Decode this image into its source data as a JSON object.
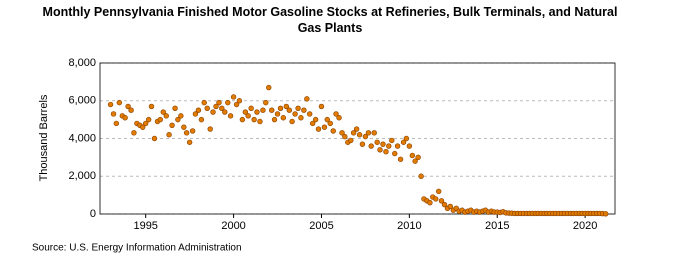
{
  "chart_data": {
    "type": "scatter",
    "title": "Monthly Pennsylvania Finished Motor Gasoline Stocks at Refineries, Bulk Terminals, and Natural Gas Plants",
    "y_label": "Thousand Barrels",
    "source": "Source: U.S. Energy Information Administration",
    "xlim": [
      1992.4,
      2021.7
    ],
    "xticks": [
      1995,
      2000,
      2005,
      2010,
      2015,
      2020
    ],
    "ylim": [
      0,
      8000
    ],
    "yticks": [
      {
        "value": 0,
        "label": "0"
      },
      {
        "value": 2000,
        "label": "2,000"
      },
      {
        "value": 4000,
        "label": "4,000"
      },
      {
        "value": 6000,
        "label": "6,000"
      },
      {
        "value": 8000,
        "label": "8,000"
      }
    ],
    "grid": true,
    "color": "#e07b00",
    "edge_color": "#8b4000",
    "x": [
      1993,
      1993.17,
      1993.33,
      1993.5,
      1993.67,
      1993.83,
      1994,
      1994.17,
      1994.33,
      1994.5,
      1994.67,
      1994.83,
      1995,
      1995.17,
      1995.33,
      1995.5,
      1995.67,
      1995.83,
      1996,
      1996.17,
      1996.33,
      1996.5,
      1996.67,
      1996.83,
      1997,
      1997.17,
      1997.33,
      1997.5,
      1997.67,
      1997.83,
      1998,
      1998.17,
      1998.33,
      1998.5,
      1998.67,
      1998.83,
      1999,
      1999.17,
      1999.33,
      1999.5,
      1999.67,
      1999.83,
      2000,
      2000.17,
      2000.33,
      2000.5,
      2000.67,
      2000.83,
      2001,
      2001.17,
      2001.33,
      2001.5,
      2001.67,
      2001.83,
      2002,
      2002.17,
      2002.33,
      2002.5,
      2002.67,
      2002.83,
      2003,
      2003.17,
      2003.33,
      2003.5,
      2003.67,
      2003.83,
      2004,
      2004.17,
      2004.33,
      2004.5,
      2004.67,
      2004.83,
      2005,
      2005.17,
      2005.33,
      2005.5,
      2005.67,
      2005.83,
      2006,
      2006.17,
      2006.33,
      2006.5,
      2006.67,
      2006.83,
      2007,
      2007.17,
      2007.33,
      2007.5,
      2007.67,
      2007.83,
      2008,
      2008.17,
      2008.33,
      2008.5,
      2008.67,
      2008.83,
      2009,
      2009.17,
      2009.33,
      2009.5,
      2009.67,
      2009.83,
      2010,
      2010.17,
      2010.33,
      2010.5,
      2010.67,
      2010.83,
      2011,
      2011.17,
      2011.33,
      2011.5,
      2011.67,
      2011.83,
      2012,
      2012.17,
      2012.33,
      2012.5,
      2012.67,
      2012.83,
      2013,
      2013.17,
      2013.33,
      2013.5,
      2013.67,
      2013.83,
      2014,
      2014.17,
      2014.33,
      2014.5,
      2014.67,
      2014.83,
      2015,
      2015.17,
      2015.33,
      2015.5,
      2015.67,
      2015.83,
      2016,
      2016.17,
      2016.33,
      2016.5,
      2016.67,
      2016.83,
      2017,
      2017.17,
      2017.33,
      2017.5,
      2017.67,
      2017.83,
      2018,
      2018.17,
      2018.33,
      2018.5,
      2018.67,
      2018.83,
      2019,
      2019.17,
      2019.33,
      2019.5,
      2019.67,
      2019.83,
      2020,
      2020.17,
      2020.33,
      2020.5,
      2020.67,
      2020.83,
      2021,
      2021.17
    ],
    "values": [
      5800,
      5300,
      4800,
      5900,
      5200,
      5100,
      5700,
      5500,
      4300,
      4800,
      4700,
      4600,
      4800,
      5000,
      5700,
      4000,
      4900,
      5000,
      5400,
      5200,
      4200,
      4700,
      5600,
      5000,
      5200,
      4600,
      4300,
      3800,
      4400,
      5300,
      5500,
      5000,
      5900,
      5600,
      4500,
      5400,
      5700,
      5900,
      5600,
      5400,
      5900,
      5200,
      6200,
      5800,
      6000,
      5000,
      5400,
      5200,
      5600,
      5000,
      5400,
      4900,
      5500,
      5900,
      6700,
      5500,
      5000,
      5300,
      5600,
      5100,
      5700,
      5500,
      4900,
      5300,
      5600,
      5100,
      5500,
      6100,
      5300,
      4800,
      5000,
      4500,
      5700,
      4600,
      5000,
      4800,
      4400,
      5300,
      5100,
      4300,
      4100,
      3800,
      3900,
      4300,
      4500,
      4200,
      3700,
      4100,
      4300,
      3600,
      4300,
      3800,
      3400,
      3700,
      3300,
      3600,
      3900,
      3200,
      3600,
      2900,
      3800,
      4000,
      3600,
      3100,
      2800,
      3000,
      2000,
      800,
      700,
      600,
      900,
      800,
      1200,
      700,
      500,
      300,
      400,
      200,
      300,
      150,
      200,
      100,
      150,
      200,
      100,
      150,
      100,
      150,
      200,
      100,
      150,
      100,
      100,
      80,
      120,
      60,
      50,
      40,
      30,
      30,
      30,
      30,
      30,
      30,
      30,
      30,
      30,
      30,
      30,
      30,
      30,
      30,
      30,
      30,
      30,
      30,
      30,
      30,
      30,
      30,
      30,
      30,
      30,
      30,
      30,
      30,
      30,
      30,
      20,
      10
    ]
  }
}
